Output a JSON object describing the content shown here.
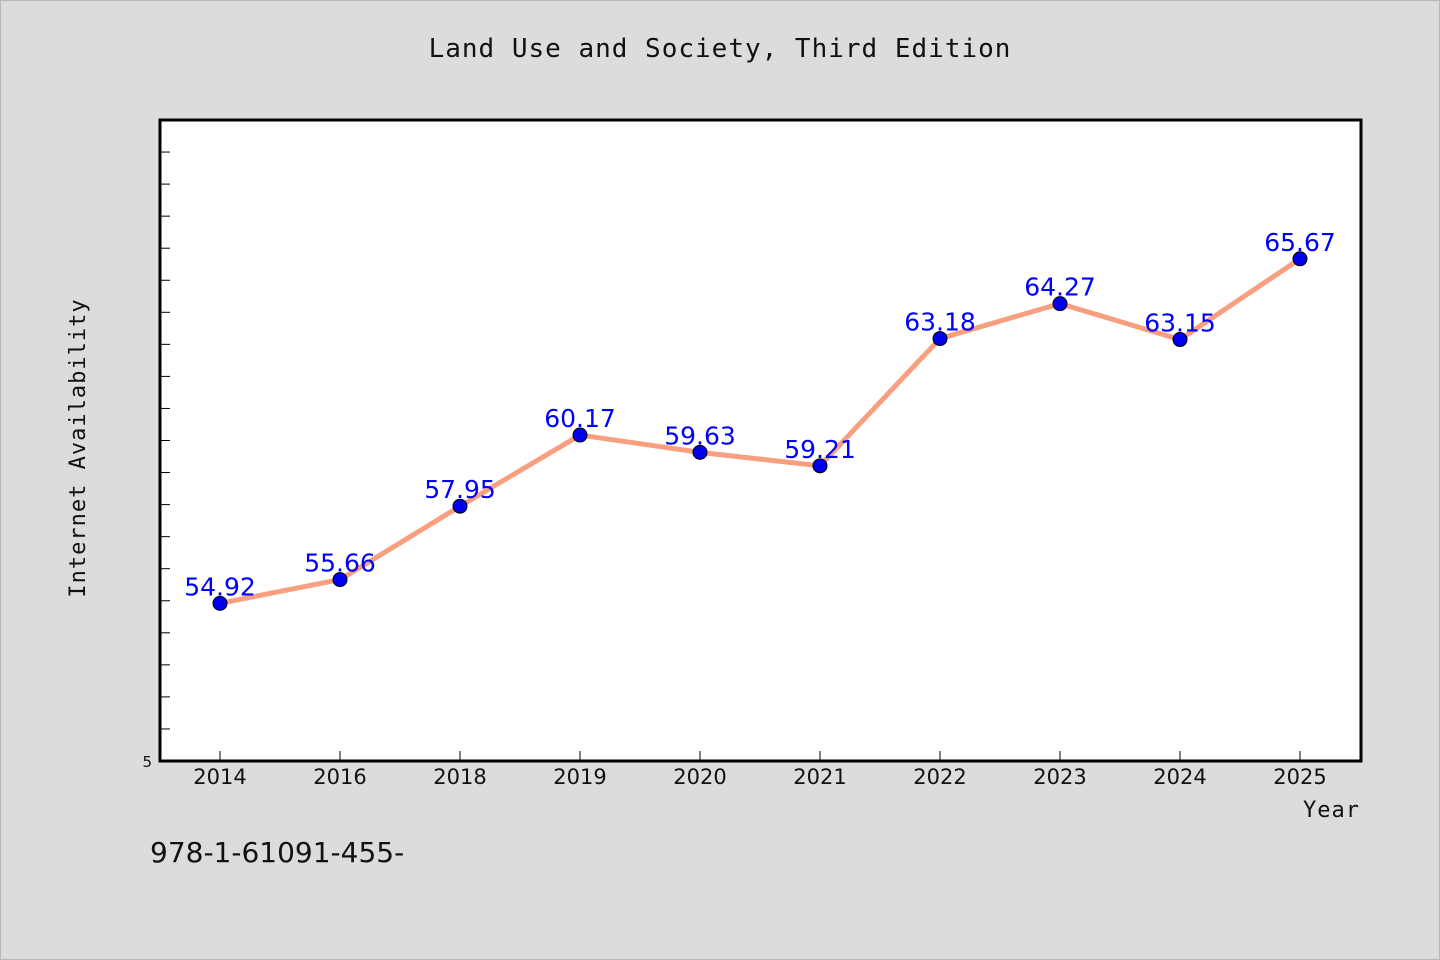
{
  "page": {
    "footer_text": "978-1-61091-455-"
  },
  "chart_data": {
    "type": "line",
    "title": "Land Use and Society, Third Edition",
    "xlabel": "Year",
    "ylabel": "Internet Availability",
    "categories": [
      "2014",
      "2016",
      "2018",
      "2019",
      "2020",
      "2021",
      "2022",
      "2023",
      "2024",
      "2025"
    ],
    "series": [
      {
        "values": [
          54.92,
          55.66,
          57.95,
          60.17,
          59.63,
          59.21,
          63.18,
          64.27,
          63.15,
          65.67
        ],
        "value_labels": [
          "54.92",
          "55.66",
          "57.95",
          "60.17",
          "59.63",
          "59.21",
          "63.18",
          "64.27",
          "63.15",
          "65.67"
        ]
      }
    ],
    "ylim": [
      50,
      70
    ],
    "y_tick_labels": [
      "5"
    ],
    "grid": false,
    "legend": "none",
    "colors": {
      "line": "#f79f7f",
      "marker": "#0000ee",
      "data_label": "#0000ff",
      "background": "#dcdcdc",
      "plot_background": "#ffffff"
    }
  }
}
